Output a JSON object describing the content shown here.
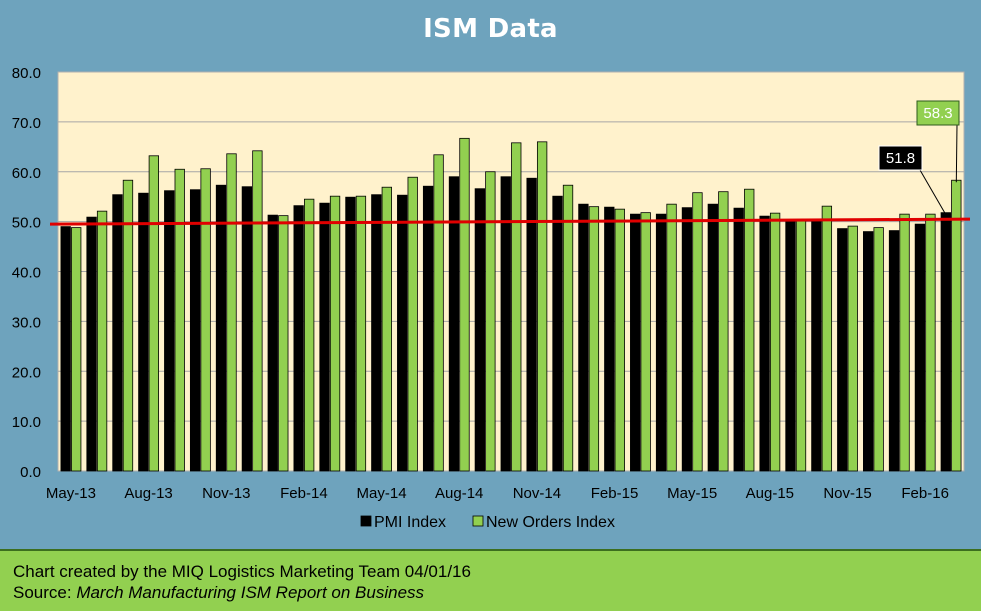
{
  "chart_data": {
    "type": "bar",
    "title": "ISM Data",
    "xlabel": "",
    "ylabel": "",
    "ylim": [
      0,
      80
    ],
    "yticks": [
      "0.0",
      "10.0",
      "20.0",
      "30.0",
      "40.0",
      "50.0",
      "60.0",
      "70.0",
      "80.0"
    ],
    "categories": [
      "May-13",
      "Jun-13",
      "Jul-13",
      "Aug-13",
      "Sep-13",
      "Oct-13",
      "Nov-13",
      "Dec-13",
      "Jan-14",
      "Feb-14",
      "Mar-14",
      "Apr-14",
      "May-14",
      "Jun-14",
      "Jul-14",
      "Aug-14",
      "Sep-14",
      "Oct-14",
      "Nov-14",
      "Dec-14",
      "Jan-15",
      "Feb-15",
      "Mar-15",
      "Apr-15",
      "May-15",
      "Jun-15",
      "Jul-15",
      "Aug-15",
      "Sep-15",
      "Oct-15",
      "Nov-15",
      "Dec-15",
      "Jan-16",
      "Feb-16",
      "Mar-16"
    ],
    "xtick_labels": [
      "May-13",
      "Aug-13",
      "Nov-13",
      "Feb-14",
      "May-14",
      "Aug-14",
      "Nov-14",
      "Feb-15",
      "May-15",
      "Aug-15",
      "Nov-15",
      "Feb-16"
    ],
    "series": [
      {
        "name": "PMI Index",
        "color": "#000000",
        "values": [
          49.0,
          50.9,
          55.4,
          55.7,
          56.2,
          56.4,
          57.3,
          57.0,
          51.3,
          53.2,
          53.7,
          54.9,
          55.4,
          55.3,
          57.1,
          59.0,
          56.6,
          59.0,
          58.7,
          55.1,
          53.5,
          52.9,
          51.5,
          51.5,
          52.8,
          53.5,
          52.7,
          51.1,
          50.2,
          50.1,
          48.6,
          48.0,
          48.2,
          49.5,
          51.8
        ]
      },
      {
        "name": "New Orders Index",
        "color": "#92d050",
        "values": [
          48.8,
          52.1,
          58.3,
          63.2,
          60.5,
          60.6,
          63.6,
          64.2,
          51.2,
          54.5,
          55.1,
          55.1,
          56.9,
          58.9,
          63.4,
          66.7,
          60.0,
          65.8,
          66.0,
          57.3,
          53.0,
          52.5,
          51.8,
          53.5,
          55.8,
          56.0,
          56.5,
          51.7,
          50.1,
          53.1,
          49.1,
          48.8,
          51.5,
          51.5,
          58.3
        ]
      }
    ],
    "reference_line": {
      "value": 50.0,
      "color": "#e00000"
    },
    "callouts": [
      {
        "series": 0,
        "index": 34,
        "label": "51.8"
      },
      {
        "series": 1,
        "index": 34,
        "label": "58.3"
      }
    ],
    "legend": "bottom-center",
    "grid": true
  },
  "footer": {
    "line1": "Chart created by the MIQ Logistics Marketing Team 04/01/16",
    "line2_prefix": "Source: ",
    "line2_source": "March Manufacturing ISM Report on Business"
  }
}
